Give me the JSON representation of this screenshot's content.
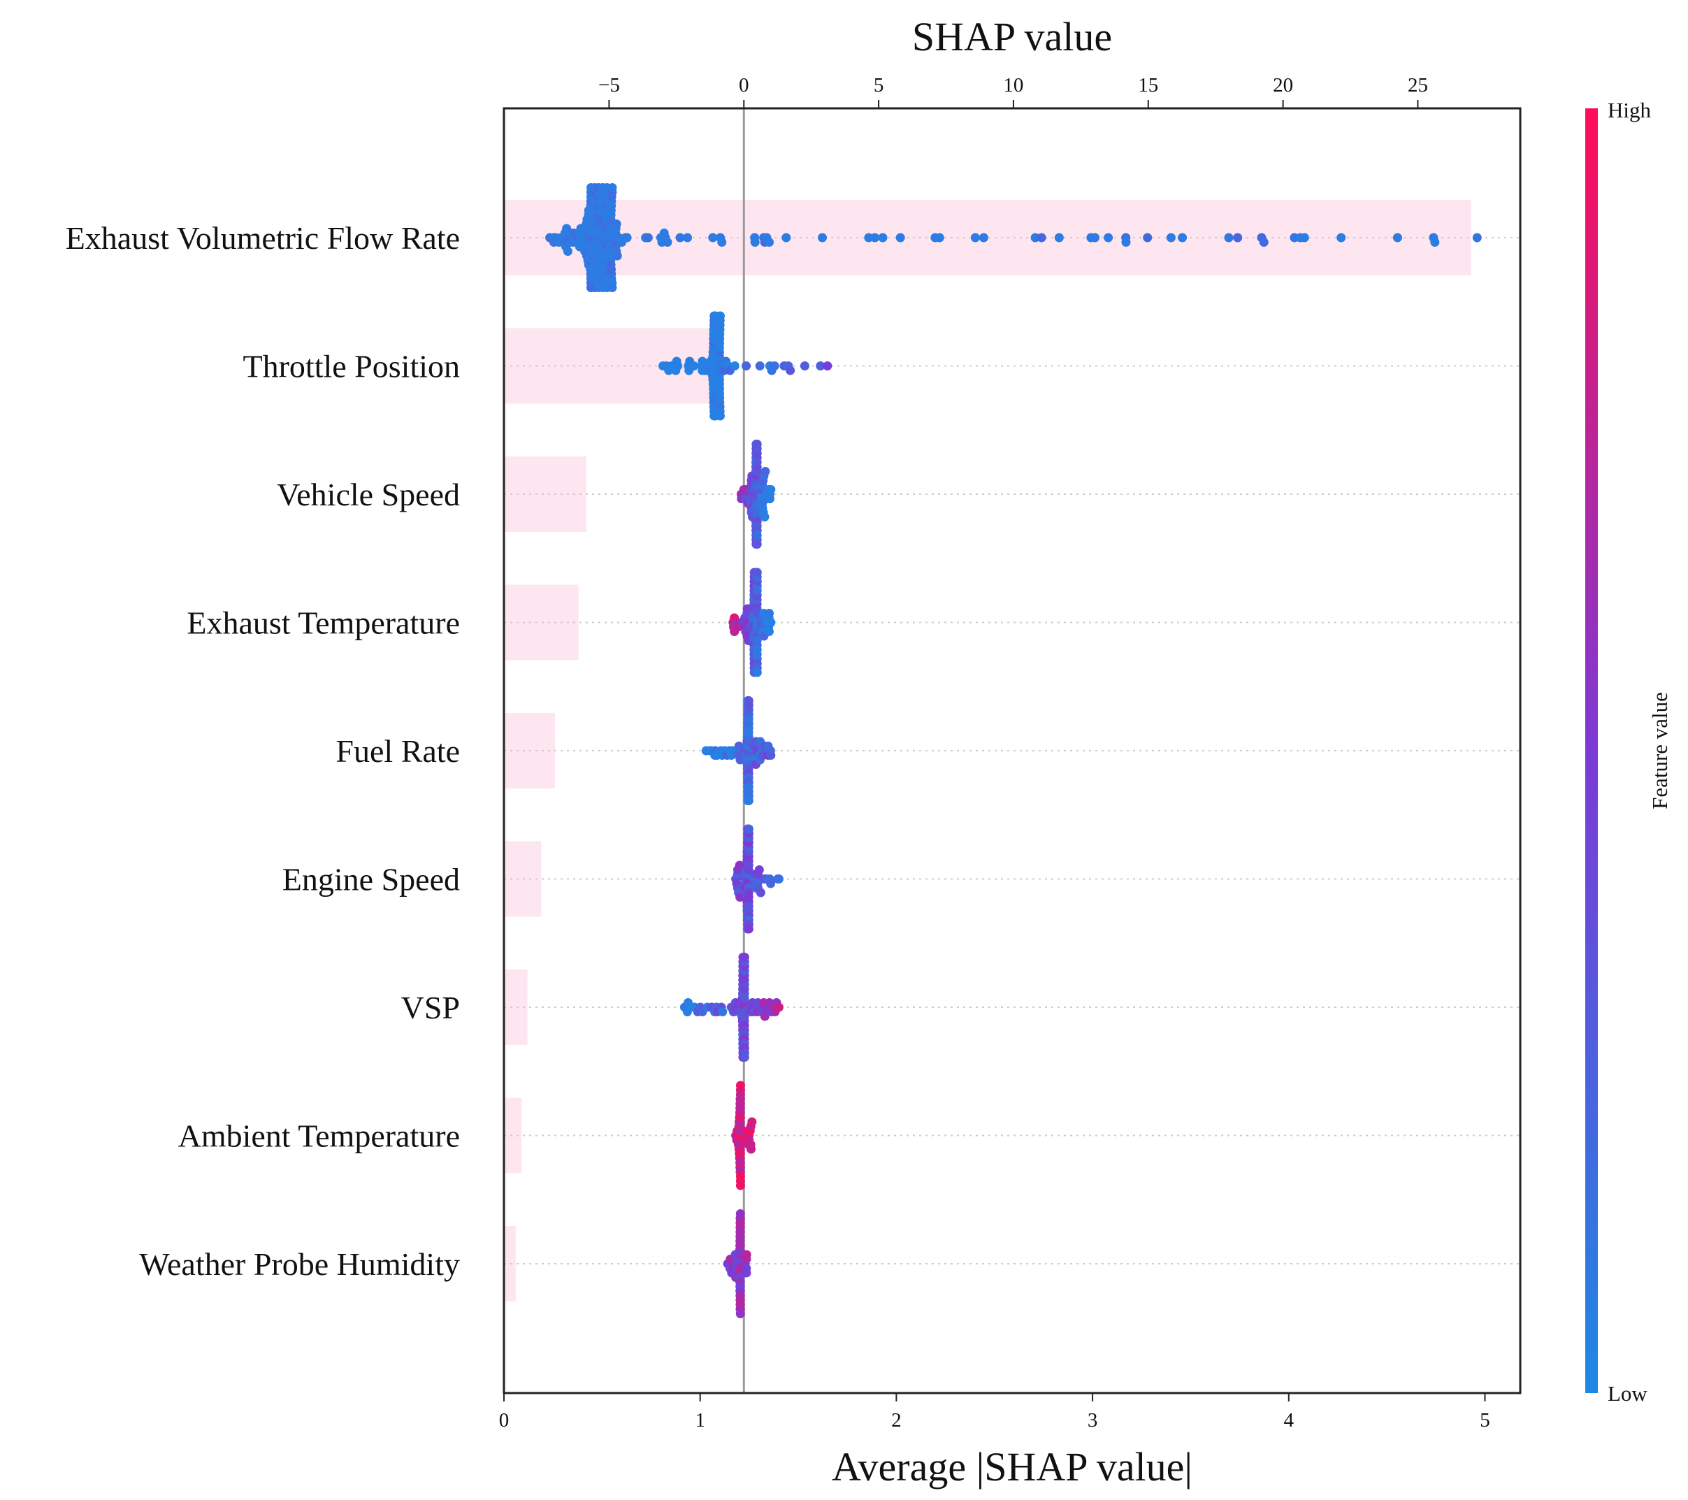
{
  "chart_data": {
    "type": "scatter",
    "subtype": "shap-summary-beeswarm-with-mean-abs-bar",
    "title": "",
    "top_axis": {
      "label": "SHAP value",
      "range": [
        -8.9,
        28.8
      ],
      "ticks": [
        -5,
        0,
        5,
        10,
        15,
        20,
        25
      ],
      "tick_labels": [
        "−5",
        "0",
        "5",
        "10",
        "15",
        "20",
        "25"
      ]
    },
    "bottom_axis": {
      "label": "Average |SHAP value|",
      "range": [
        0,
        5.18
      ],
      "ticks": [
        0,
        1,
        2,
        3,
        4,
        5
      ],
      "tick_labels": [
        "0",
        "1",
        "2",
        "3",
        "4",
        "5"
      ]
    },
    "categories": [
      "Exhaust Volumetric Flow Rate",
      "Throttle Position",
      "Vehicle Speed",
      "Exhaust Temperature",
      "Fuel Rate",
      "Engine Speed",
      "VSP",
      "Ambient Temperature",
      "Weather Probe Humidity"
    ],
    "series": [
      {
        "name": "Average |SHAP value|",
        "values": [
          4.93,
          1.05,
          0.42,
          0.38,
          0.26,
          0.19,
          0.12,
          0.09,
          0.06
        ]
      }
    ],
    "shap_range": [
      {
        "feature": "Exhaust Volumetric Flow Rate",
        "min": -7.2,
        "max": 27.2
      },
      {
        "feature": "Throttle Position",
        "min": -3.0,
        "max": 3.1
      },
      {
        "feature": "Vehicle Speed",
        "min": -0.1,
        "max": 1.0
      },
      {
        "feature": "Exhaust Temperature",
        "min": -0.4,
        "max": 1.0
      },
      {
        "feature": "Fuel Rate",
        "min": -1.4,
        "max": 1.0
      },
      {
        "feature": "Engine Speed",
        "min": -0.3,
        "max": 1.3
      },
      {
        "feature": "VSP",
        "min": -2.2,
        "max": 1.3
      },
      {
        "feature": "Ambient Temperature",
        "min": -0.3,
        "max": 0.3
      },
      {
        "feature": "Weather Probe Humidity",
        "min": -0.6,
        "max": 0.1
      }
    ],
    "colorbar": {
      "label": "Feature value",
      "high_label": "High",
      "low_label": "Low",
      "colors": [
        "#1e88e5",
        "#7c3ad6",
        "#ff0d57"
      ]
    },
    "bar_color": "#fde6f0",
    "grid": false
  }
}
